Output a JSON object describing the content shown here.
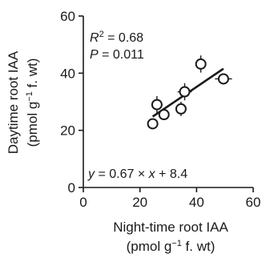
{
  "chart_data": {
    "type": "scatter",
    "xlabel_line1": "Night-time root IAA",
    "xlabel_line2_prefix": "(pmol g",
    "xlabel_line2_sup": "−1",
    "xlabel_line2_suffix": " f. wt)",
    "ylabel_line1": "Daytime root IAA",
    "ylabel_line2_prefix": "(pmol g",
    "ylabel_line2_sup": "−1",
    "ylabel_line2_suffix": " f. wt)",
    "xlim": [
      0,
      60
    ],
    "ylim": [
      0,
      60
    ],
    "x_ticks": [
      "0",
      "20",
      "40",
      "60"
    ],
    "y_ticks": [
      "0",
      "20",
      "40",
      "60"
    ],
    "points": [
      {
        "x": 24.5,
        "y": 22.3,
        "xerr": 0,
        "yerr": 0
      },
      {
        "x": 26.0,
        "y": 29.0,
        "xerr": 2.0,
        "yerr": 3.0
      },
      {
        "x": 28.5,
        "y": 25.5,
        "xerr": 0,
        "yerr": 1.5
      },
      {
        "x": 34.5,
        "y": 27.5,
        "xerr": 1.5,
        "yerr": 2.5
      },
      {
        "x": 35.8,
        "y": 33.5,
        "xerr": 2.5,
        "yerr": 3.0
      },
      {
        "x": 41.5,
        "y": 43.2,
        "xerr": 1.5,
        "yerr": 3.0
      },
      {
        "x": 49.5,
        "y": 38.0,
        "xerr": 3.0,
        "yerr": 1.5
      }
    ],
    "fit": {
      "slope": 0.67,
      "intercept": 8.4,
      "x_range": [
        24.5,
        49.5
      ]
    },
    "r2_symbol": "R",
    "r2_sup": "2",
    "r2_value": " = 0.68",
    "p_symbol": "P",
    "p_value": " = 0.011",
    "eq_y": "y",
    "eq_mid": " = 0.67 × ",
    "eq_x": "x",
    "eq_end": " + 8.4",
    "grid": false
  }
}
